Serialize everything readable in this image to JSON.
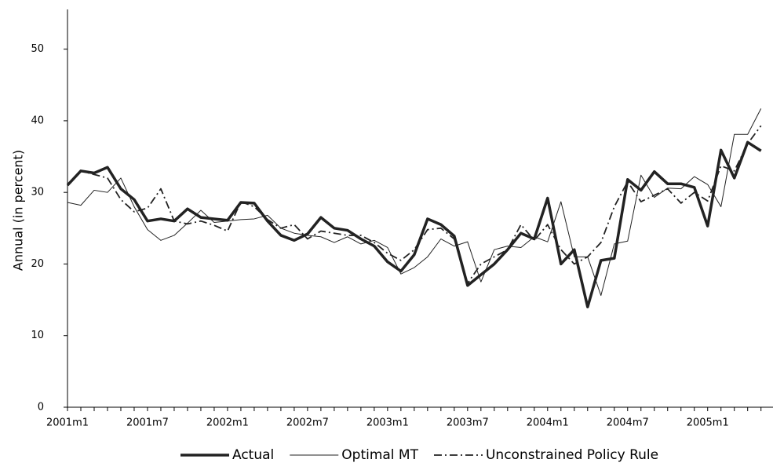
{
  "chart_data": {
    "type": "line",
    "y_label": "Annual (in percent)",
    "categories": [
      "2001m1",
      null,
      null,
      null,
      null,
      null,
      "2001m7",
      null,
      null,
      null,
      null,
      null,
      "2002m1",
      null,
      null,
      null,
      null,
      null,
      "2002m7",
      null,
      null,
      null,
      null,
      null,
      "2003m1",
      null,
      null,
      null,
      null,
      null,
      "2003m7",
      null,
      null,
      null,
      null,
      null,
      "2004m1",
      null,
      null,
      null,
      null,
      null,
      "2004m7",
      null,
      null,
      null,
      null,
      null,
      "2005m1",
      null,
      null,
      null,
      null
    ],
    "series": [
      {
        "name": "Actual",
        "color": "#222222",
        "values": [
          31,
          33,
          32.7,
          33.5,
          30.5,
          29,
          26,
          26.3,
          26,
          27.7,
          26.5,
          26.3,
          26.1,
          28.6,
          28.5,
          26,
          24,
          23.3,
          24.2,
          26.5,
          25,
          24.7,
          23.5,
          22.5,
          20.3,
          19,
          21.3,
          26.3,
          25.5,
          23.9,
          17,
          18.5,
          20,
          22,
          24.3,
          23.5,
          29.2,
          20,
          22,
          14,
          20.5,
          20.8,
          31.8,
          30.3,
          32.9,
          31.2,
          31.2,
          30.7,
          25.3,
          35.9,
          32,
          37,
          35.8
        ]
      },
      {
        "name": "Optimal MT",
        "color": "#222222",
        "values": [
          28.6,
          28.2,
          30.3,
          30,
          32,
          28,
          24.8,
          23.3,
          24,
          25.7,
          27.5,
          25.8,
          26,
          26.2,
          26.3,
          26.8,
          25,
          24.3,
          24,
          23.8,
          23,
          23.8,
          22.8,
          23.3,
          22.3,
          18.6,
          19.5,
          21,
          23.5,
          22.5,
          23.1,
          17.5,
          22,
          22.5,
          22.3,
          23.8,
          23.1,
          28.7,
          21,
          21,
          15.6,
          22.8,
          23.2,
          32.4,
          29.3,
          30.6,
          30.5,
          32.2,
          31.1,
          28,
          38.1,
          38.1,
          41.7
        ]
      },
      {
        "name": "Unconstrained Policy Rule",
        "color": "#222222",
        "values": [
          31,
          33,
          32.5,
          32,
          29,
          27.3,
          27.8,
          30.5,
          26,
          25.6,
          26,
          25.4,
          24.6,
          28.7,
          28,
          26.2,
          25,
          25.5,
          23.5,
          24.6,
          24.3,
          24,
          24,
          23,
          21.5,
          20.5,
          22,
          24.8,
          25,
          23.5,
          17.3,
          20,
          21,
          22,
          25.5,
          23.3,
          25.5,
          22,
          20,
          21,
          23,
          28,
          31.5,
          28.7,
          29.6,
          30.5,
          28.5,
          30,
          28.8,
          33.7,
          33,
          36.8,
          39.3
        ]
      }
    ],
    "ylim": [
      0,
      55
    ],
    "yticks": [
      0,
      10,
      20,
      30,
      40,
      50
    ],
    "grid": false,
    "legend": "bottom"
  }
}
